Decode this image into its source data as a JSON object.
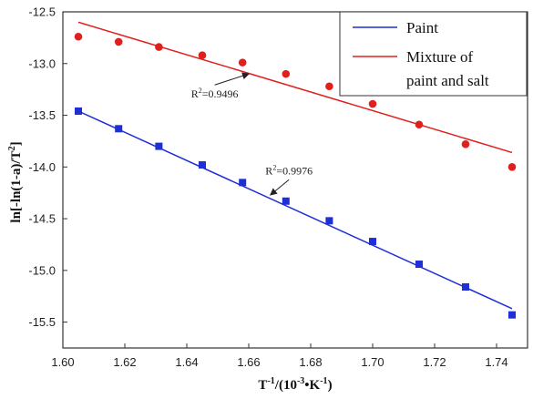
{
  "chart_data": {
    "type": "scatter",
    "xlabel_main": "T",
    "xlabel_exp": "-1",
    "xlabel_rest1": "/(10",
    "xlabel_exp2": "-3",
    "xlabel_rest2": "•K",
    "xlabel_exp3": "-1",
    "xlabel_rest3": ")",
    "ylabel_main": "ln[-ln(1-a)/T",
    "ylabel_exp": "2",
    "ylabel_rest": "]",
    "xlim": [
      1.6,
      1.75
    ],
    "ylim": [
      -15.75,
      -12.5
    ],
    "xticks": [
      1.6,
      1.62,
      1.64,
      1.66,
      1.68,
      1.7,
      1.72,
      1.74
    ],
    "xtick_labels": [
      "1.60",
      "1.62",
      "1.64",
      "1.66",
      "1.68",
      "1.70",
      "1.72",
      "1.74"
    ],
    "yticks": [
      -12.5,
      -13.0,
      -13.5,
      -14.0,
      -14.5,
      -15.0,
      -15.5
    ],
    "ytick_labels": [
      "-12.5",
      "-13.0",
      "-13.5",
      "-14.0",
      "-14.5",
      "-15.0",
      "-15.5"
    ],
    "grid": false,
    "legend_position": "top-right",
    "series": [
      {
        "name": "Paint",
        "color": "#1f2fd6",
        "marker": "square",
        "x": [
          1.605,
          1.618,
          1.631,
          1.645,
          1.658,
          1.672,
          1.686,
          1.7,
          1.715,
          1.73,
          1.745
        ],
        "y": [
          -13.46,
          -13.63,
          -13.8,
          -13.98,
          -14.15,
          -14.33,
          -14.52,
          -14.72,
          -14.94,
          -15.16,
          -15.43
        ],
        "fit": {
          "x": [
            1.605,
            1.745
          ],
          "y": [
            -13.46,
            -15.37
          ]
        },
        "annotation": {
          "label": "R",
          "sup": "2",
          "value": "=0.9976",
          "target_x": 1.667,
          "target_y": -14.27,
          "text_x": 1.673,
          "text_y": -14.07
        }
      },
      {
        "name": "Mixture of paint and salt",
        "legend_lines": [
          "Mixture of",
          "paint and salt"
        ],
        "color": "#e0201d",
        "marker": "circle",
        "x": [
          1.605,
          1.618,
          1.631,
          1.645,
          1.658,
          1.672,
          1.686,
          1.7,
          1.715,
          1.73,
          1.745
        ],
        "y": [
          -12.74,
          -12.79,
          -12.84,
          -12.92,
          -12.99,
          -13.1,
          -13.22,
          -13.39,
          -13.59,
          -13.78,
          -14.0
        ],
        "fit": {
          "x": [
            1.605,
            1.745
          ],
          "y": [
            -12.6,
            -13.86
          ]
        },
        "annotation": {
          "label": "R",
          "sup": "2",
          "value": "=0.9496",
          "target_x": 1.66,
          "target_y": -13.1,
          "text_x": 1.649,
          "text_y": -13.33
        }
      }
    ]
  }
}
